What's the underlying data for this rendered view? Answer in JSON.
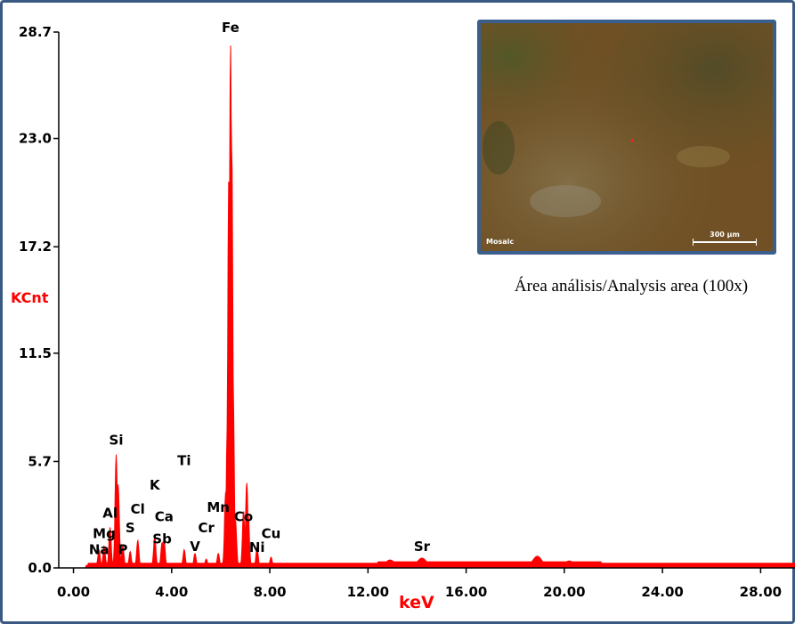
{
  "chart_data": {
    "type": "line",
    "title": "",
    "xlabel": "keV",
    "ylabel": "KCnt",
    "xlim": [
      -0.6,
      29.4
    ],
    "ylim": [
      0,
      28.7
    ],
    "x_ticks": [
      "0.00",
      "4.00",
      "8.00",
      "12.00",
      "16.00",
      "20.00",
      "24.00",
      "28.00"
    ],
    "x_tick_values": [
      0,
      4,
      8,
      12,
      16,
      20,
      24,
      28
    ],
    "y_ticks": [
      "0.0",
      "5.7",
      "11.5",
      "17.2",
      "23.0",
      "28.7"
    ],
    "y_tick_values": [
      0.0,
      5.7,
      11.5,
      17.2,
      23.0,
      28.7
    ],
    "color": "#ff0000",
    "grid": false,
    "peaks": [
      {
        "x": 0.55,
        "y": 0.15
      },
      {
        "x": 1.04,
        "y": 0.9
      },
      {
        "x": 1.25,
        "y": 1.1
      },
      {
        "x": 1.49,
        "y": 2.1
      },
      {
        "x": 1.74,
        "y": 6.0
      },
      {
        "x": 1.82,
        "y": 4.4
      },
      {
        "x": 2.01,
        "y": 1.1
      },
      {
        "x": 2.31,
        "y": 0.8
      },
      {
        "x": 2.62,
        "y": 1.4
      },
      {
        "x": 3.31,
        "y": 1.6
      },
      {
        "x": 3.61,
        "y": 1.3
      },
      {
        "x": 3.69,
        "y": 1.4
      },
      {
        "x": 4.51,
        "y": 0.9
      },
      {
        "x": 4.95,
        "y": 0.7
      },
      {
        "x": 5.41,
        "y": 0.4
      },
      {
        "x": 5.9,
        "y": 0.7
      },
      {
        "x": 6.2,
        "y": 4.0
      },
      {
        "x": 6.27,
        "y": 7.6
      },
      {
        "x": 6.33,
        "y": 21.0
      },
      {
        "x": 6.4,
        "y": 28.0
      },
      {
        "x": 6.45,
        "y": 22.5
      },
      {
        "x": 6.5,
        "y": 10.0
      },
      {
        "x": 6.6,
        "y": 2.5
      },
      {
        "x": 6.93,
        "y": 3.0
      },
      {
        "x": 7.06,
        "y": 4.5
      },
      {
        "x": 7.12,
        "y": 2.8
      },
      {
        "x": 7.48,
        "y": 1.0
      },
      {
        "x": 8.05,
        "y": 0.5
      },
      {
        "x": 12.9,
        "y": 0.35
      },
      {
        "x": 14.2,
        "y": 0.45
      },
      {
        "x": 18.9,
        "y": 0.55
      },
      {
        "x": 20.2,
        "y": 0.3
      }
    ],
    "background_level": 0.25,
    "element_labels": [
      {
        "text": "Fe",
        "x": 6.4,
        "y": 28.7
      },
      {
        "text": "Si",
        "x": 1.74,
        "y": 6.6
      },
      {
        "text": "Ti",
        "x": 4.51,
        "y": 5.5
      },
      {
        "text": "K",
        "x": 3.31,
        "y": 4.2
      },
      {
        "text": "Al",
        "x": 1.49,
        "y": 2.7
      },
      {
        "text": "Cl",
        "x": 2.62,
        "y": 2.9
      },
      {
        "text": "Ca",
        "x": 3.69,
        "y": 2.5
      },
      {
        "text": "Mn",
        "x": 5.9,
        "y": 3.0
      },
      {
        "text": "Co",
        "x": 6.93,
        "y": 2.5
      },
      {
        "text": "Mg",
        "x": 1.25,
        "y": 1.6
      },
      {
        "text": "S",
        "x": 2.31,
        "y": 1.9
      },
      {
        "text": "Sb",
        "x": 3.61,
        "y": 1.3
      },
      {
        "text": "Cr",
        "x": 5.41,
        "y": 1.9
      },
      {
        "text": "Cu",
        "x": 8.05,
        "y": 1.6
      },
      {
        "text": "Na",
        "x": 1.04,
        "y": 0.75
      },
      {
        "text": "P",
        "x": 2.01,
        "y": 0.75
      },
      {
        "text": "V",
        "x": 4.95,
        "y": 0.9
      },
      {
        "text": "Ni",
        "x": 7.48,
        "y": 0.85
      },
      {
        "text": "Sr",
        "x": 14.2,
        "y": 0.9
      }
    ]
  },
  "inset": {
    "caption": "Área análisis/Analysis area (100x)",
    "mosaic_label": "Mosaic",
    "scale_label": "300 µm"
  }
}
